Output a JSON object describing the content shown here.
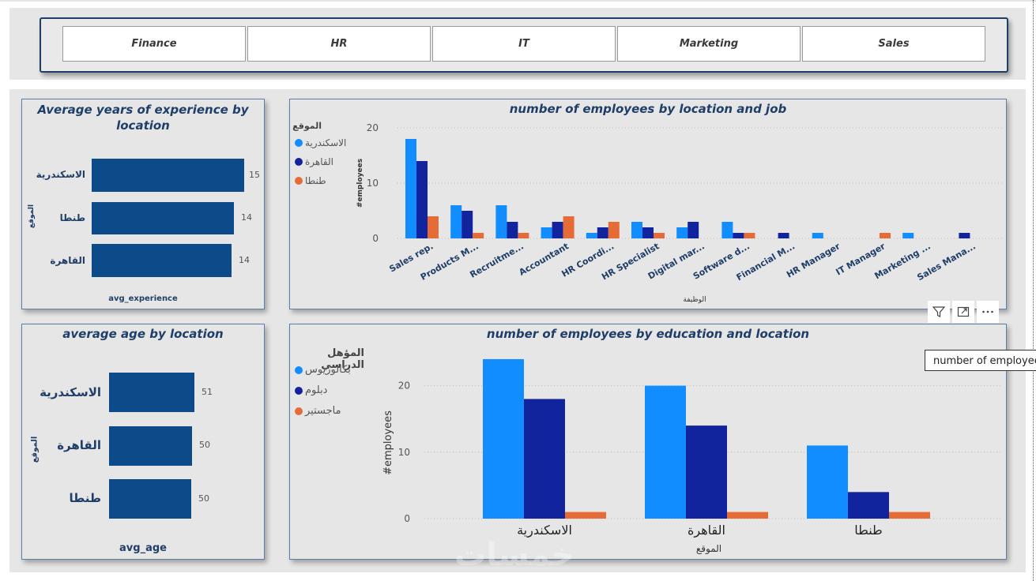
{
  "slicer": {
    "items": [
      "Finance",
      "HR",
      "IT",
      "Marketing",
      "Sales"
    ]
  },
  "colors": {
    "series1": "#118dff",
    "series2": "#12239e",
    "series3": "#e66c37",
    "bar": "#0c4a8a",
    "title": "#1f3e68"
  },
  "exp_card": {
    "title_line1": "Average years of experience by",
    "title_line2": "location",
    "axis_label": "الموقع",
    "value_label": "avg_experience",
    "rows": [
      {
        "label": "الاسكندرية",
        "value": "15"
      },
      {
        "label": "طنطا",
        "value": "14"
      },
      {
        "label": "القاهرة",
        "value": "14"
      }
    ]
  },
  "age_card": {
    "title": "average age by location",
    "axis_label": "الموقع",
    "value_label": "avg_age",
    "rows": [
      {
        "label": "الاسكندرية",
        "value": "51"
      },
      {
        "label": "القاهرة",
        "value": "50"
      },
      {
        "label": "طنطا",
        "value": "50"
      }
    ]
  },
  "jobs_chart": {
    "title": "number of employees by location and job",
    "legend_title": "الموقع",
    "legend": [
      "الاسكندرية",
      "القاهرة",
      "طنطا"
    ],
    "ylabel": "#employees",
    "xlabel": "الوظيفة"
  },
  "edu_chart": {
    "title": "number of employees by education and location",
    "legend_title": "المؤهل الدراسي",
    "legend": [
      "بكالوريوس",
      "دبلوم",
      "ماجستير"
    ],
    "ylabel": "#employees",
    "xlabel": "الموقع"
  },
  "tooltip": "number of employees by location and job",
  "watermark": "خمسات",
  "chart_data": [
    {
      "type": "bar",
      "title": "Average years of experience by location",
      "categories": [
        "الاسكندرية",
        "طنطا",
        "القاهرة"
      ],
      "values": [
        15,
        14,
        14
      ],
      "xlabel": "avg_experience",
      "ylabel": "الموقع"
    },
    {
      "type": "bar",
      "title": "average age by location",
      "categories": [
        "الاسكندرية",
        "القاهرة",
        "طنطا"
      ],
      "values": [
        51,
        50,
        50
      ],
      "xlabel": "avg_age",
      "ylabel": "الموقع"
    },
    {
      "type": "bar",
      "title": "number of employees by location and job",
      "categories": [
        "Sales rep.",
        "Products M...",
        "Recruitme...",
        "Accountant",
        "HR Coordi...",
        "HR Specialist",
        "Digital mar...",
        "Software d...",
        "Financial M...",
        "HR Manager",
        "IT Manager",
        "Marketing ...",
        "Sales Mana..."
      ],
      "series": [
        {
          "name": "الاسكندرية",
          "values": [
            18,
            6,
            6,
            2,
            1,
            3,
            2,
            3,
            0,
            1,
            0,
            1,
            0
          ]
        },
        {
          "name": "القاهرة",
          "values": [
            14,
            5,
            3,
            3,
            2,
            2,
            3,
            1,
            1,
            0,
            0,
            0,
            1
          ]
        },
        {
          "name": "طنطا",
          "values": [
            4,
            1,
            1,
            4,
            3,
            1,
            0,
            1,
            0,
            0,
            1,
            0,
            0
          ]
        }
      ],
      "yticks": [
        "0",
        "10",
        "20"
      ],
      "ylim": [
        0,
        20
      ],
      "xlabel": "الوظيفة",
      "ylabel": "#employees",
      "legend_title": "الموقع"
    },
    {
      "type": "bar",
      "title": "number of employees by education and location",
      "categories": [
        "الاسكندرية",
        "القاهرة",
        "طنطا"
      ],
      "series": [
        {
          "name": "بكالوريوس",
          "values": [
            24,
            20,
            11
          ]
        },
        {
          "name": "دبلوم",
          "values": [
            18,
            14,
            4
          ]
        },
        {
          "name": "ماجستير",
          "values": [
            1,
            1,
            1
          ]
        }
      ],
      "yticks": [
        "0",
        "10",
        "20"
      ],
      "ylim": [
        0,
        25
      ],
      "xlabel": "الموقع",
      "ylabel": "#employees",
      "legend_title": "المؤهل الدراسي"
    }
  ]
}
